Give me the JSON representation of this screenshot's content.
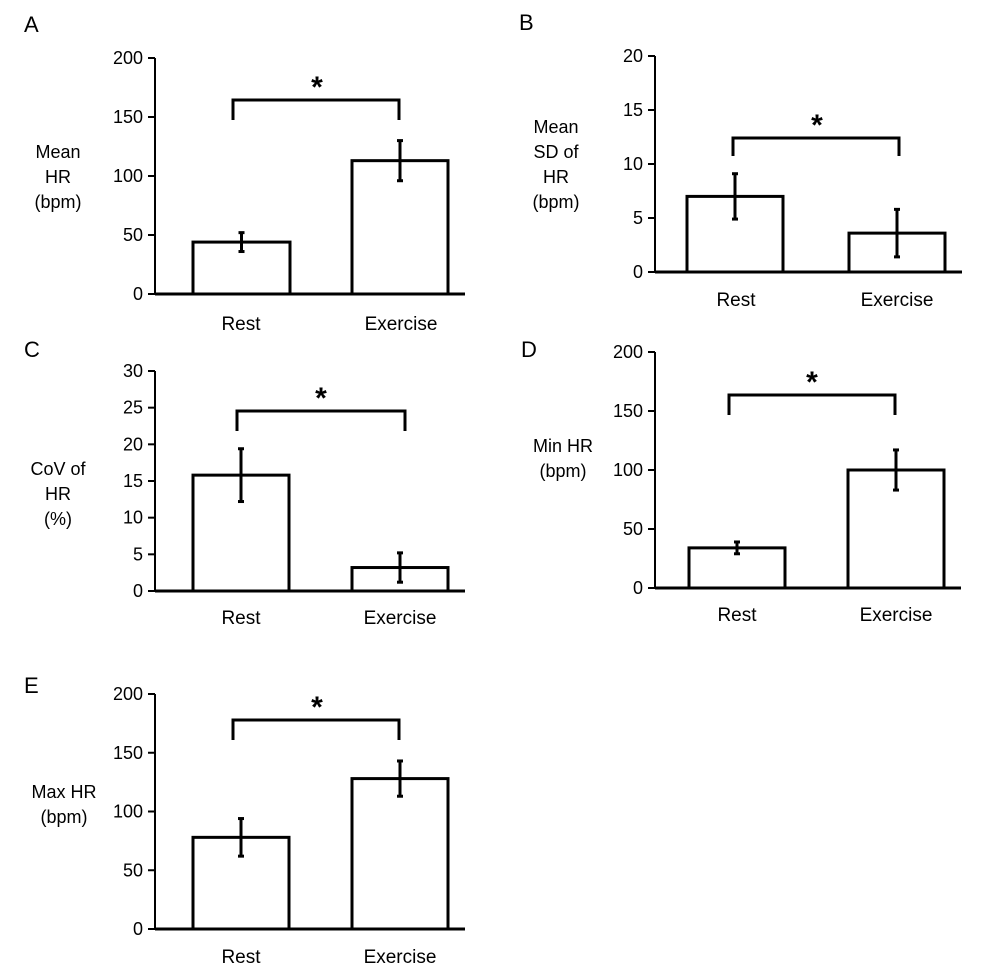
{
  "chart_data": [
    {
      "type": "bar",
      "panel": "A",
      "ylabel": [
        "Mean",
        "HR",
        "(bpm)"
      ],
      "categories": [
        "Rest",
        "Exercise"
      ],
      "values": [
        44,
        113
      ],
      "errors": [
        8,
        17
      ],
      "ylim": [
        0,
        200
      ],
      "yticks": [
        0,
        50,
        100,
        150,
        200
      ],
      "significance": "*"
    },
    {
      "type": "bar",
      "panel": "B",
      "ylabel": [
        "Mean",
        "SD of",
        "HR",
        "(bpm)"
      ],
      "categories": [
        "Rest",
        "Exercise"
      ],
      "values": [
        7,
        3.6
      ],
      "errors": [
        2.1,
        2.2
      ],
      "ylim": [
        0,
        20
      ],
      "yticks": [
        0,
        5,
        10,
        15,
        20
      ],
      "significance": "*"
    },
    {
      "type": "bar",
      "panel": "C",
      "ylabel": [
        "CoV of",
        "HR",
        "(%)"
      ],
      "categories": [
        "Rest",
        "Exercise"
      ],
      "values": [
        15.8,
        3.2
      ],
      "errors": [
        3.6,
        2
      ],
      "ylim": [
        0,
        30
      ],
      "yticks": [
        0,
        5,
        10,
        15,
        20,
        25,
        30
      ],
      "significance": "*"
    },
    {
      "type": "bar",
      "panel": "D",
      "ylabel": [
        "Min HR",
        "(bpm)"
      ],
      "categories": [
        "Rest",
        "Exercise"
      ],
      "values": [
        34,
        100
      ],
      "errors": [
        5,
        17
      ],
      "ylim": [
        0,
        200
      ],
      "yticks": [
        0,
        50,
        100,
        150,
        200
      ],
      "significance": "*"
    },
    {
      "type": "bar",
      "panel": "E",
      "ylabel": [
        "Max HR",
        "(bpm)"
      ],
      "categories": [
        "Rest",
        "Exercise"
      ],
      "values": [
        78,
        128
      ],
      "errors": [
        16,
        15
      ],
      "ylim": [
        0,
        200
      ],
      "yticks": [
        0,
        50,
        100,
        150,
        200
      ],
      "significance": "*"
    }
  ],
  "colors": {
    "bar_fill": "#ffffff",
    "stroke": "#000000"
  }
}
